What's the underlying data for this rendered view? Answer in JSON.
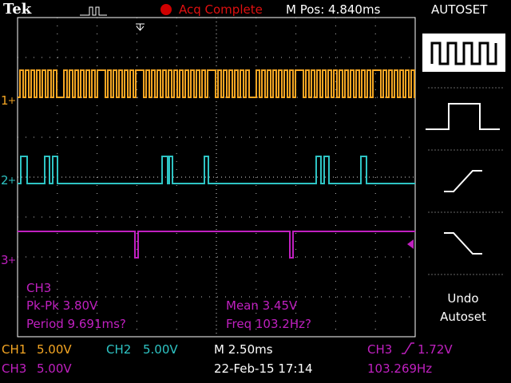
{
  "header": {
    "brand": "Tek",
    "status": "Acq Complete",
    "position": "M Pos: 4.840ms",
    "menu_title": "AUTOSET"
  },
  "channel_markers": [
    "1",
    "2",
    "3"
  ],
  "measurements": {
    "source": "CH3",
    "pk_pk": "Pk-Pk 3.80V",
    "period": "Period 9.691ms?",
    "mean": "Mean 3.45V",
    "freq": "Freq 103.2Hz?"
  },
  "menu": {
    "undo": [
      "Undo",
      "Autoset"
    ]
  },
  "status_bar": {
    "ch1": "CH1",
    "ch1_scale": "5.00V",
    "ch2": "CH2",
    "ch2_scale": "5.00V",
    "timebase": "M 2.50ms",
    "trigger_source": "CH3",
    "trigger_level": "1.72V",
    "ch3": "CH3",
    "ch3_scale": "5.00V",
    "date": "22-Feb-15 17:14",
    "trigger_freq": "103.269Hz"
  }
}
